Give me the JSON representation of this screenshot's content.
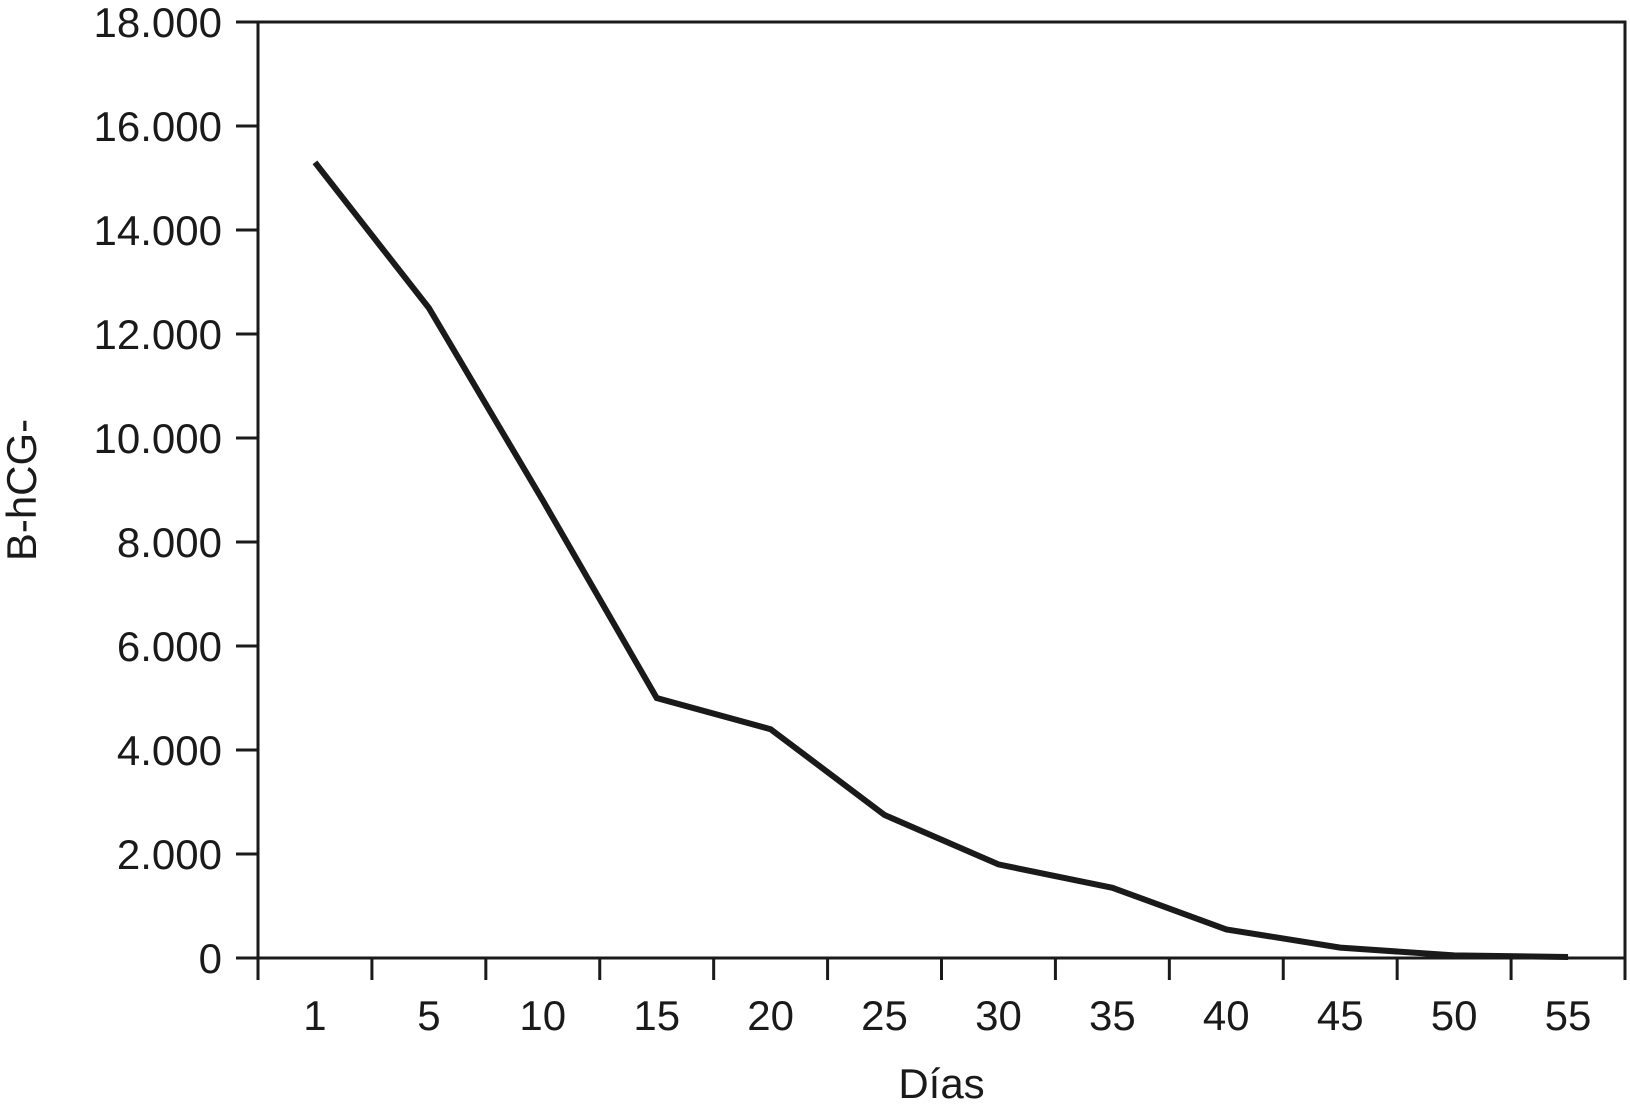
{
  "chart_data": {
    "type": "line",
    "title": "",
    "xlabel": "Días",
    "ylabel": "B-hCG-",
    "categories": [
      "1",
      "5",
      "10",
      "15",
      "20",
      "25",
      "30",
      "35",
      "40",
      "45",
      "50",
      "55"
    ],
    "y_ticks": [
      "0",
      "2.000",
      "4.000",
      "6.000",
      "8.000",
      "10.000",
      "12.000",
      "14.000",
      "16.000",
      "18.000"
    ],
    "ylim": [
      0,
      18000
    ],
    "grid": false,
    "series": [
      {
        "values": [
          15300,
          12500,
          8800,
          5000,
          4400,
          2750,
          1800,
          1350,
          550,
          200,
          50,
          20
        ]
      }
    ],
    "colors": {
      "line": "#1a1a1a",
      "axis": "#1a1a1a"
    }
  }
}
